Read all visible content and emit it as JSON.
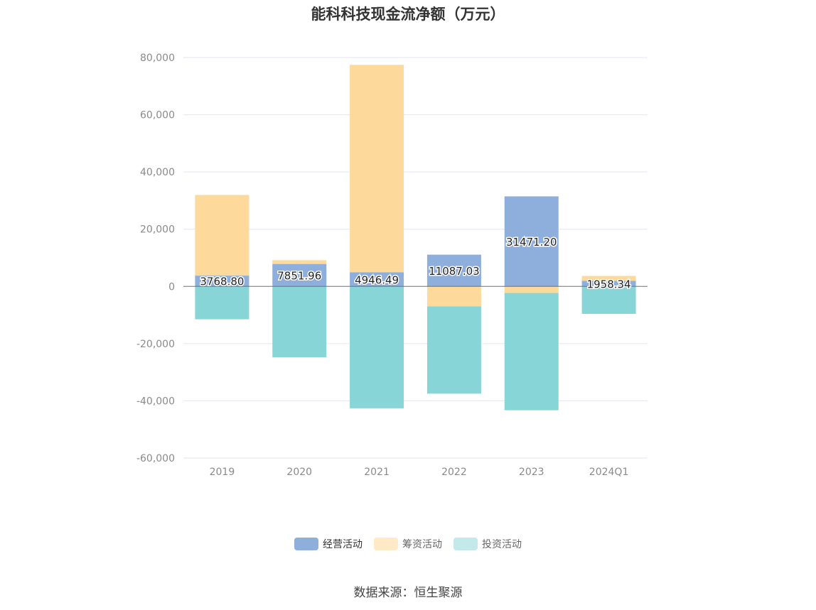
{
  "chart_data": {
    "type": "bar",
    "stacked": true,
    "title": "能科科技现金流净额（万元）",
    "categories": [
      "2019",
      "2020",
      "2021",
      "2022",
      "2023",
      "2024Q1"
    ],
    "series": [
      {
        "name": "经营活动",
        "color": "#8eaedb",
        "values": [
          3768.8,
          7851.96,
          4946.49,
          11087.03,
          31471.2,
          1958.34
        ],
        "data_labels": [
          "3768.80",
          "7851.96",
          "4946.49",
          "11087.03",
          "31471.20",
          "1958.34"
        ]
      },
      {
        "name": "筹资活动",
        "color": "#fed99c",
        "values": [
          28200,
          1300,
          72500,
          -7000,
          -2300,
          1700
        ]
      },
      {
        "name": "投资活动",
        "color": "#88d5d8",
        "values": [
          -11500,
          -24800,
          -42600,
          -30500,
          -41000,
          -9600
        ]
      }
    ],
    "yticks": [
      "80,000",
      "60,000",
      "40,000",
      "20,000",
      "0",
      "-20,000",
      "-40,000",
      "-60,000"
    ],
    "ylim": [
      -60000,
      80000
    ],
    "grid": true,
    "legend_position": "bottom",
    "source": "数据来源：恒生聚源"
  }
}
